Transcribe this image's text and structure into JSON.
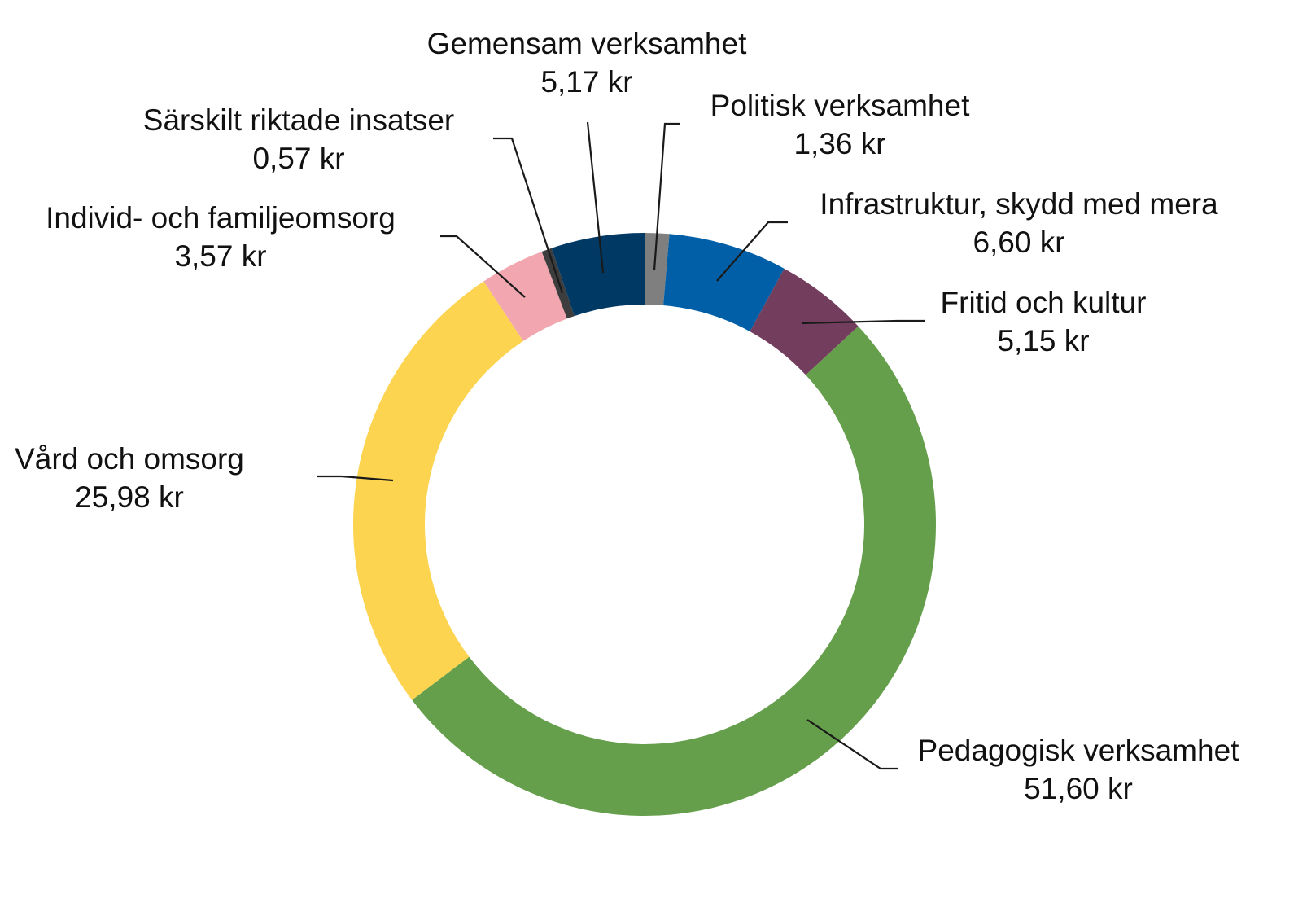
{
  "chart_data": {
    "type": "pie",
    "variant": "donut",
    "title": "",
    "direction": "clockwise from top",
    "slices": [
      {
        "name": "Politisk verksamhet",
        "value": 1.36,
        "label": "1,36 kr",
        "color": "#7f7f7f"
      },
      {
        "name": "Infrastruktur, skydd med mera",
        "value": 6.6,
        "label": "6,60 kr",
        "color": "#005fa6"
      },
      {
        "name": "Fritid och kultur",
        "value": 5.15,
        "label": "5,15 kr",
        "color": "#733e5e"
      },
      {
        "name": "Pedagogisk verksamhet",
        "value": 51.6,
        "label": "51,60 kr",
        "color": "#659f4c"
      },
      {
        "name": "Vård och omsorg",
        "value": 25.98,
        "label": "25,98 kr",
        "color": "#fcd44f"
      },
      {
        "name": "Individ- och familjeomsorg",
        "value": 3.57,
        "label": "3,57 kr",
        "color": "#f2a7b0"
      },
      {
        "name": "Särskilt riktade insatser",
        "value": 0.57,
        "label": "0,57 kr",
        "color": "#3d3d3d"
      },
      {
        "name": "Gemensam verksamhet",
        "value": 5.17,
        "label": "5,17 kr",
        "color": "#003963"
      }
    ]
  }
}
